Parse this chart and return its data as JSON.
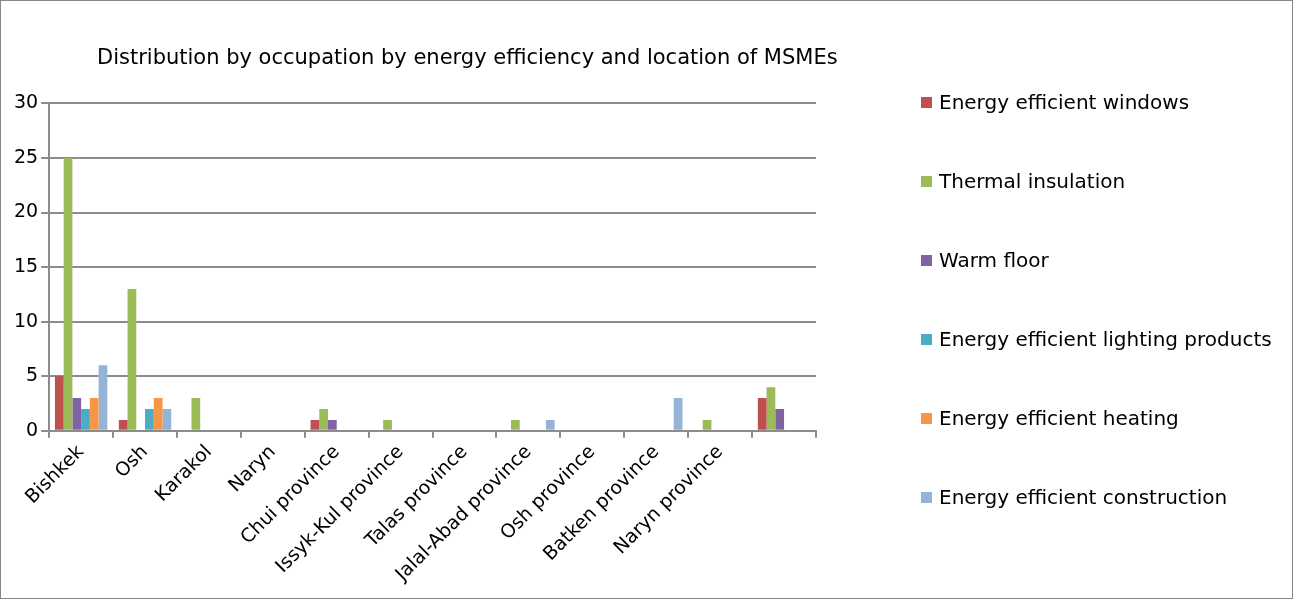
{
  "chart_data": {
    "type": "bar",
    "title": "Distribution by occupation by energy efficiency and location of MSMEs",
    "categories": [
      "Bishkek",
      "Osh",
      "Karakol",
      "Naryn",
      "Chui province",
      "Issyk-Kul province",
      "Talas province",
      "Jalal-Abad province",
      "Osh province",
      "Batken province",
      "Naryn province",
      null
    ],
    "series": [
      {
        "name": "Energy efficient windows",
        "color": "#c0504d",
        "values": [
          5,
          1,
          0,
          0,
          1,
          0,
          0,
          0,
          0,
          0,
          0,
          3
        ]
      },
      {
        "name": "Thermal insulation",
        "color": "#9bbb59",
        "values": [
          25,
          13,
          3,
          0,
          2,
          1,
          0,
          1,
          0,
          0,
          1,
          4
        ]
      },
      {
        "name": "Warm floor",
        "color": "#8064a2",
        "values": [
          3,
          0,
          0,
          0,
          1,
          0,
          0,
          0,
          0,
          0,
          0,
          2
        ]
      },
      {
        "name": "Energy efficient lighting products",
        "color": "#4bacc6",
        "values": [
          2,
          2,
          0,
          0,
          0,
          0,
          0,
          0,
          0,
          0,
          0,
          0
        ]
      },
      {
        "name": "Energy efficient heating",
        "color": "#f79646",
        "values": [
          3,
          3,
          0,
          0,
          0,
          0,
          0,
          0,
          0,
          0,
          0,
          0
        ]
      },
      {
        "name": "Energy efficient construction",
        "color": "#95b3d7",
        "values": [
          6,
          2,
          0,
          0,
          0,
          0,
          0,
          1,
          0,
          3,
          0,
          0
        ]
      }
    ],
    "ylim": [
      0,
      30
    ],
    "yticks": [
      0,
      5,
      10,
      15,
      20,
      25,
      30
    ],
    "grid": "y",
    "legend": "right"
  }
}
